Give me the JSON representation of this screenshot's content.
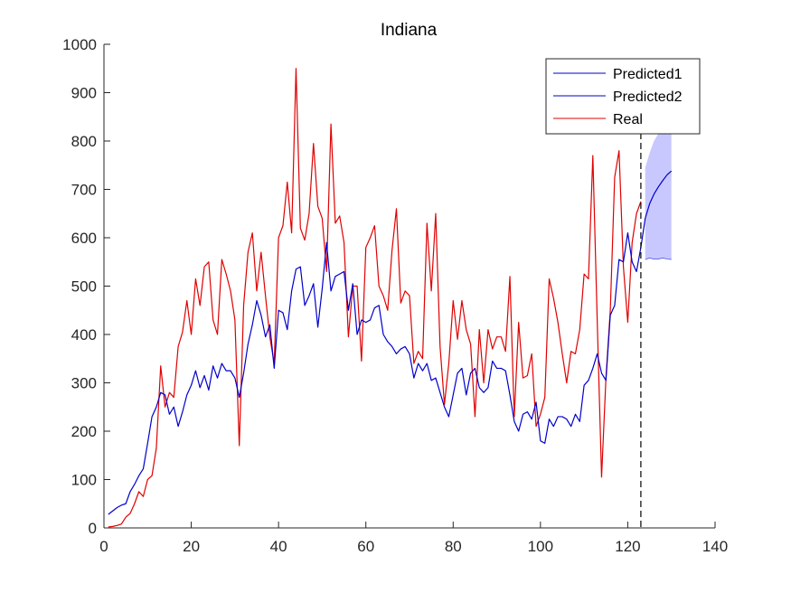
{
  "chart_data": {
    "type": "line",
    "title": "Indiana",
    "xlabel": "",
    "ylabel": "",
    "xlim": [
      0,
      140
    ],
    "ylim": [
      0,
      1000
    ],
    "xticks": [
      0,
      20,
      40,
      60,
      80,
      100,
      120,
      140
    ],
    "yticks": [
      0,
      100,
      200,
      300,
      400,
      500,
      600,
      700,
      800,
      900,
      1000
    ],
    "grid": false,
    "legend_position": "top-right",
    "vline_x": 123,
    "colors": {
      "predicted": "#0000cc",
      "real": "#e00000",
      "band": "#c8c8ff"
    },
    "series": [
      {
        "name": "Predicted1",
        "color": "#0000cc",
        "x": [
          1,
          2,
          3,
          4,
          5,
          6,
          7,
          8,
          9,
          10,
          11,
          12,
          13,
          14,
          15,
          16,
          17,
          18,
          19,
          20,
          21,
          22,
          23,
          24,
          25,
          26,
          27,
          28,
          29,
          30,
          31,
          32,
          33,
          34,
          35,
          36,
          37,
          38,
          39,
          40,
          41,
          42,
          43,
          44,
          45,
          46,
          47,
          48,
          49,
          50,
          51,
          52,
          53,
          54,
          55,
          56,
          57,
          58,
          59,
          60,
          61,
          62,
          63,
          64,
          65,
          66,
          67,
          68,
          69,
          70,
          71,
          72,
          73,
          74,
          75,
          76,
          77,
          78,
          79,
          80,
          81,
          82,
          83,
          84,
          85,
          86,
          87,
          88,
          89,
          90,
          91,
          92,
          93,
          94,
          95,
          96,
          97,
          98,
          99,
          100,
          101,
          102,
          103,
          104,
          105,
          106,
          107,
          108,
          109,
          110,
          111,
          112,
          113,
          114,
          115,
          116,
          117,
          118,
          119,
          120,
          121,
          122,
          123
        ],
        "values": [
          28,
          35,
          42,
          47,
          50,
          75,
          90,
          108,
          122,
          175,
          230,
          250,
          280,
          275,
          235,
          250,
          210,
          240,
          275,
          295,
          325,
          290,
          315,
          285,
          335,
          310,
          340,
          325,
          325,
          310,
          270,
          320,
          380,
          420,
          470,
          440,
          395,
          420,
          330,
          450,
          445,
          410,
          490,
          535,
          540,
          460,
          480,
          505,
          415,
          495,
          590,
          490,
          520,
          525,
          530,
          450,
          505,
          400,
          430,
          425,
          430,
          455,
          460,
          400,
          385,
          375,
          360,
          370,
          375,
          360,
          310,
          340,
          325,
          340,
          305,
          310,
          280,
          250,
          230,
          275,
          320,
          330,
          275,
          320,
          330,
          290,
          280,
          290,
          345,
          330,
          330,
          325,
          275,
          220,
          200,
          235,
          240,
          225,
          260,
          180,
          175,
          225,
          210,
          230,
          230,
          225,
          210,
          235,
          220,
          295,
          305,
          330,
          360,
          320,
          305,
          440,
          460,
          555,
          550,
          610,
          550,
          530,
          580
        ]
      },
      {
        "name": "Predicted2",
        "color": "#0000cc",
        "x": [
          123,
          124,
          125,
          126,
          127,
          128,
          129,
          130
        ],
        "values": [
          580,
          640,
          670,
          690,
          705,
          718,
          730,
          738
        ]
      },
      {
        "name": "Real",
        "color": "#e00000",
        "x": [
          1,
          2,
          3,
          4,
          5,
          6,
          7,
          8,
          9,
          10,
          11,
          12,
          13,
          14,
          15,
          16,
          17,
          18,
          19,
          20,
          21,
          22,
          23,
          24,
          25,
          26,
          27,
          28,
          29,
          30,
          31,
          32,
          33,
          34,
          35,
          36,
          37,
          38,
          39,
          40,
          41,
          42,
          43,
          44,
          45,
          46,
          47,
          48,
          49,
          50,
          51,
          52,
          53,
          54,
          55,
          56,
          57,
          58,
          59,
          60,
          61,
          62,
          63,
          64,
          65,
          66,
          67,
          68,
          69,
          70,
          71,
          72,
          73,
          74,
          75,
          76,
          77,
          78,
          79,
          80,
          81,
          82,
          83,
          84,
          85,
          86,
          87,
          88,
          89,
          90,
          91,
          92,
          93,
          94,
          95,
          96,
          97,
          98,
          99,
          100,
          101,
          102,
          103,
          104,
          105,
          106,
          107,
          108,
          109,
          110,
          111,
          112,
          113,
          114,
          115,
          116,
          117,
          118,
          119,
          120,
          121,
          122,
          123
        ],
        "values": [
          2,
          3,
          5,
          8,
          22,
          30,
          50,
          75,
          65,
          100,
          108,
          165,
          335,
          250,
          280,
          270,
          375,
          405,
          470,
          400,
          515,
          460,
          540,
          550,
          430,
          400,
          555,
          525,
          490,
          430,
          170,
          460,
          570,
          610,
          490,
          570,
          480,
          395,
          340,
          600,
          625,
          715,
          610,
          950,
          620,
          595,
          650,
          795,
          665,
          640,
          530,
          835,
          630,
          645,
          590,
          395,
          500,
          500,
          345,
          580,
          600,
          625,
          500,
          480,
          450,
          575,
          660,
          465,
          490,
          480,
          340,
          365,
          350,
          630,
          490,
          650,
          375,
          255,
          340,
          470,
          390,
          470,
          410,
          380,
          230,
          410,
          300,
          410,
          370,
          395,
          395,
          365,
          520,
          230,
          425,
          310,
          315,
          360,
          210,
          235,
          270,
          515,
          475,
          425,
          360,
          300,
          365,
          360,
          410,
          525,
          515,
          770,
          430,
          105,
          310,
          450,
          725,
          780,
          540,
          425,
          590,
          650,
          675
        ]
      }
    ],
    "band": {
      "x": [
        124,
        125,
        126,
        127,
        128,
        129,
        130
      ],
      "lower": [
        555,
        558,
        556,
        556,
        558,
        556,
        555
      ],
      "upper": [
        745,
        775,
        800,
        815,
        815,
        815,
        815
      ]
    }
  }
}
